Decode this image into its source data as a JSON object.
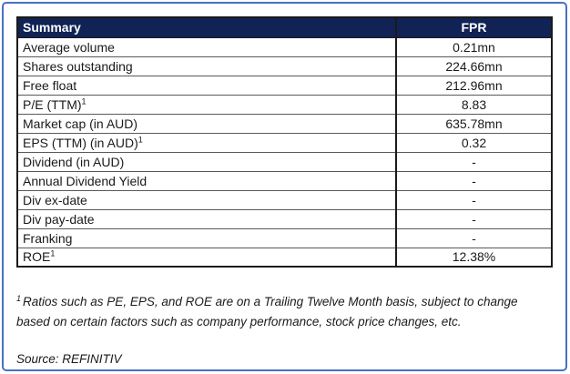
{
  "table": {
    "header": {
      "label_col": "Summary",
      "value_col": "FPR"
    },
    "rows": [
      {
        "label": "Average volume",
        "sup": "",
        "value": "0.21mn"
      },
      {
        "label": "Shares outstanding",
        "sup": "",
        "value": "224.66mn"
      },
      {
        "label": "Free float",
        "sup": "",
        "value": "212.96mn"
      },
      {
        "label": "P/E (TTM)",
        "sup": "1",
        "value": "8.83"
      },
      {
        "label": "Market cap (in AUD)",
        "sup": "",
        "value": "635.78mn"
      },
      {
        "label": "EPS (TTM) (in AUD)",
        "sup": "1",
        "value": "0.32"
      },
      {
        "label": "Dividend (in AUD)",
        "sup": "",
        "value": "-"
      },
      {
        "label": "Annual Dividend Yield",
        "sup": "",
        "value": "-"
      },
      {
        "label": "Div ex-date",
        "sup": "",
        "value": "-"
      },
      {
        "label": "Div pay-date",
        "sup": "",
        "value": "-"
      },
      {
        "label": "Franking",
        "sup": "",
        "value": "-"
      },
      {
        "label": "ROE",
        "sup": "1",
        "value": "12.38%"
      }
    ]
  },
  "footnote": {
    "sup": "1",
    "text": "Ratios such as PE, EPS, and ROE are on a Trailing Twelve Month basis, subject to change based on certain factors such as company performance, stock price changes, etc."
  },
  "source": "Source: REFINITIV",
  "colors": {
    "frame_border": "#4472c4",
    "header_bg": "#112355",
    "header_text": "#ffffff",
    "table_border": "#1a1a1a",
    "row_divider": "#595959"
  }
}
